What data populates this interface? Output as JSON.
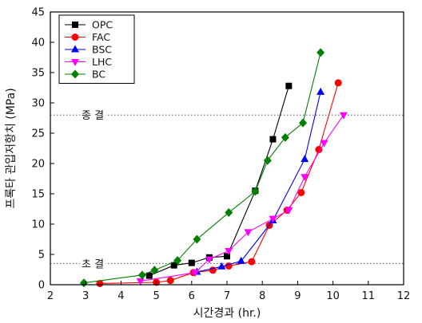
{
  "chart_data": {
    "type": "line",
    "xlabel": "시간경과 (hr.)",
    "ylabel": "프록타 관입저항치 (MPa)",
    "xlim": [
      2,
      12
    ],
    "ylim": [
      0,
      45
    ],
    "xticks": [
      2,
      3,
      4,
      5,
      6,
      7,
      8,
      9,
      10,
      11,
      12
    ],
    "yticks": [
      0,
      5,
      10,
      15,
      20,
      25,
      30,
      35,
      40,
      45
    ],
    "legend_position": "top-left",
    "series": [
      {
        "name": "OPC",
        "color": "#000000",
        "marker": "square",
        "points": [
          [
            4.8,
            1.5
          ],
          [
            5.5,
            3.2
          ],
          [
            6.0,
            3.6
          ],
          [
            6.5,
            4.5
          ],
          [
            7.0,
            4.7
          ],
          [
            7.8,
            15.5
          ],
          [
            8.3,
            24.0
          ],
          [
            8.75,
            32.8
          ]
        ]
      },
      {
        "name": "FAC",
        "color": "#ff0000",
        "marker": "circle",
        "points": [
          [
            3.4,
            0.2
          ],
          [
            5.0,
            0.4
          ],
          [
            5.4,
            0.7
          ],
          [
            6.05,
            2.0
          ],
          [
            6.6,
            2.4
          ],
          [
            7.05,
            3.1
          ],
          [
            7.7,
            3.8
          ],
          [
            8.2,
            9.8
          ],
          [
            8.7,
            12.3
          ],
          [
            9.1,
            15.2
          ],
          [
            9.6,
            22.3
          ],
          [
            10.15,
            33.3
          ]
        ]
      },
      {
        "name": "BSC",
        "color": "#0000ff",
        "marker": "triangle-up",
        "points": [
          [
            6.15,
            2.1
          ],
          [
            6.85,
            3.0
          ],
          [
            7.4,
            3.9
          ],
          [
            8.3,
            10.6
          ],
          [
            9.2,
            20.7
          ],
          [
            9.65,
            31.8
          ]
        ]
      },
      {
        "name": "LHC",
        "color": "#ff00ff",
        "marker": "triangle-down",
        "points": [
          [
            4.55,
            0.6
          ],
          [
            6.1,
            2.0
          ],
          [
            6.5,
            4.2
          ],
          [
            7.05,
            5.6
          ],
          [
            7.6,
            8.7
          ],
          [
            8.3,
            10.9
          ],
          [
            8.75,
            12.3
          ],
          [
            9.2,
            17.8
          ],
          [
            9.75,
            23.4
          ],
          [
            10.3,
            28.0
          ]
        ]
      },
      {
        "name": "BC",
        "color": "#008000",
        "marker": "diamond",
        "points": [
          [
            2.95,
            0.3
          ],
          [
            4.6,
            1.6
          ],
          [
            4.95,
            2.4
          ],
          [
            5.6,
            4.0
          ],
          [
            6.15,
            7.5
          ],
          [
            7.05,
            11.9
          ],
          [
            7.8,
            15.4
          ],
          [
            8.15,
            20.5
          ],
          [
            8.65,
            24.3
          ],
          [
            9.15,
            26.7
          ],
          [
            9.65,
            38.3
          ]
        ]
      }
    ],
    "reference_lines": [
      {
        "label": "종 결",
        "y": 28
      },
      {
        "label": "초 결",
        "y": 3.5
      }
    ]
  }
}
